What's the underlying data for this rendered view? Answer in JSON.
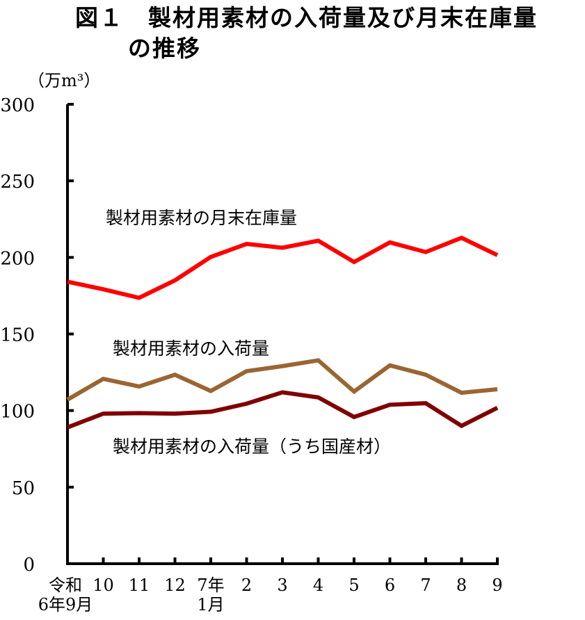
{
  "chart_data": {
    "type": "line",
    "title_line1": "図１　製材用素材の入荷量及び月末在庫量",
    "title_line2": "の推移",
    "ylabel": "（万m³）",
    "xlabel": "",
    "ylim": [
      0,
      300
    ],
    "yticks": [
      0,
      50,
      100,
      150,
      200,
      250,
      300
    ],
    "categories": [
      [
        "令和",
        "6年9月"
      ],
      [
        "10"
      ],
      [
        "11"
      ],
      [
        "12"
      ],
      [
        "7年",
        "1月"
      ],
      [
        "2"
      ],
      [
        "3"
      ],
      [
        "4"
      ],
      [
        "5"
      ],
      [
        "6"
      ],
      [
        "7"
      ],
      [
        "8"
      ],
      [
        "9"
      ]
    ],
    "grid": false,
    "legend": "inline labels",
    "series": [
      {
        "name": "製材用素材の月末在庫量",
        "color": "#ff0000",
        "values": [
          184.1,
          179.2,
          173.6,
          185.0,
          200.3,
          208.8,
          206.3,
          210.9,
          197.0,
          209.8,
          203.5,
          212.8,
          201.5
        ]
      },
      {
        "name": "製材用素材の入荷量",
        "color": "#996633",
        "values": [
          107.1,
          120.7,
          115.7,
          123.4,
          112.8,
          125.7,
          129.0,
          132.8,
          112.4,
          129.5,
          123.4,
          111.6,
          113.9
        ]
      },
      {
        "name": "製材用素材の入荷量（うち国産材）",
        "color": "#800000",
        "values": [
          89.0,
          98.0,
          98.3,
          98.0,
          99.2,
          104.5,
          111.9,
          108.6,
          95.8,
          103.8,
          104.8,
          90.0,
          101.8
        ]
      }
    ]
  }
}
